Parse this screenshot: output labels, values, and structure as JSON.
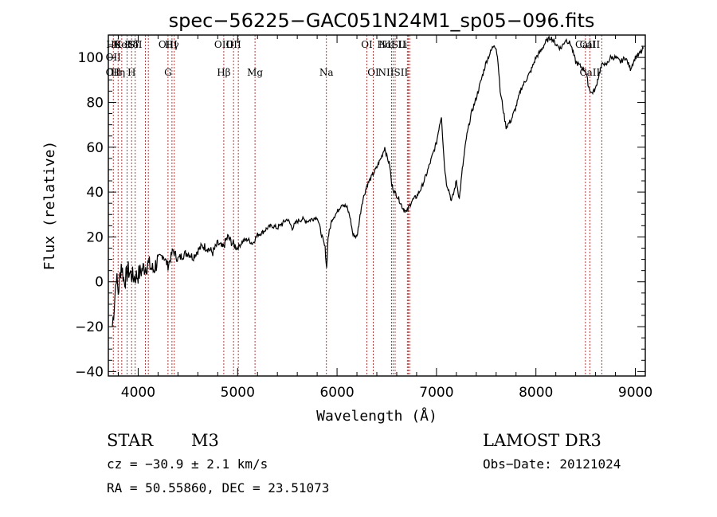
{
  "chart_data": {
    "type": "line",
    "title": "spec−56225−GAC051N24M1_sp05−096.fits",
    "xlabel": "Wavelength (Å)",
    "ylabel": "Flux (relative)",
    "xlim": [
      3700,
      9100
    ],
    "ylim": [
      -42,
      110
    ],
    "x_ticks": [
      4000,
      5000,
      6000,
      7000,
      8000,
      9000
    ],
    "y_ticks": [
      -40,
      -20,
      0,
      20,
      40,
      60,
      80,
      100
    ],
    "y_tick_labels": [
      "−40",
      "−20",
      "0",
      "20",
      "40",
      "60",
      "80",
      "100"
    ],
    "line_color": "#000000",
    "marker_color": "#b22222",
    "series": [
      {
        "name": "flux",
        "x": [
          3740,
          3760,
          3780,
          3800,
          3830,
          3860,
          3900,
          3950,
          4000,
          4050,
          4100,
          4150,
          4200,
          4250,
          4300,
          4350,
          4400,
          4450,
          4500,
          4550,
          4600,
          4650,
          4700,
          4750,
          4800,
          4850,
          4900,
          4950,
          5000,
          5050,
          5100,
          5150,
          5200,
          5250,
          5300,
          5350,
          5400,
          5450,
          5500,
          5550,
          5600,
          5650,
          5700,
          5750,
          5800,
          5850,
          5880,
          5895,
          5910,
          5950,
          6000,
          6050,
          6100,
          6130,
          6160,
          6200,
          6250,
          6300,
          6350,
          6400,
          6450,
          6480,
          6500,
          6530,
          6550,
          6580,
          6620,
          6660,
          6700,
          6720,
          6750,
          6800,
          6850,
          6900,
          6950,
          7000,
          7030,
          7050,
          7060,
          7080,
          7100,
          7130,
          7150,
          7170,
          7200,
          7230,
          7260,
          7300,
          7350,
          7400,
          7450,
          7500,
          7550,
          7580,
          7600,
          7620,
          7640,
          7660,
          7680,
          7700,
          7750,
          7800,
          7850,
          7900,
          7950,
          8000,
          8050,
          8100,
          8150,
          8200,
          8250,
          8300,
          8350,
          8400,
          8450,
          8500,
          8530,
          8560,
          8600,
          8620,
          8650,
          8680,
          8700,
          8750,
          8800,
          8850,
          8900,
          8950,
          9000,
          9050,
          9080
        ],
        "y": [
          -20,
          -10,
          3,
          -5,
          8,
          0,
          5,
          2,
          3,
          6,
          8,
          5,
          10,
          12,
          7,
          14,
          10,
          12,
          13,
          11,
          14,
          16,
          15,
          13,
          17,
          15,
          20,
          17,
          15,
          18,
          19,
          17,
          21,
          22,
          24,
          25,
          24,
          26,
          28,
          24,
          27,
          28,
          27,
          28,
          29,
          20,
          15,
          6,
          20,
          28,
          31,
          35,
          33,
          29,
          21,
          20,
          35,
          43,
          47,
          51,
          56,
          60,
          56,
          52,
          43,
          40,
          37,
          33,
          31,
          33,
          36,
          38,
          42,
          48,
          55,
          62,
          70,
          74,
          66,
          52,
          44,
          40,
          36,
          39,
          45,
          37,
          50,
          64,
          75,
          82,
          90,
          98,
          103,
          106,
          104,
          98,
          85,
          80,
          74,
          69,
          72,
          78,
          86,
          90,
          94,
          100,
          103,
          107,
          109,
          106,
          104,
          108,
          106,
          98,
          96,
          94,
          87,
          84,
          86,
          90,
          95,
          98,
          96,
          100,
          100,
          98,
          100,
          95,
          100,
          102,
          104
        ]
      }
    ],
    "line_markers": [
      {
        "x": 3750,
        "top": [
          "Hθ",
          "OII"
        ],
        "bottom": [
          "OII"
        ]
      },
      {
        "x": 3798,
        "top": [
          "K"
        ],
        "bottom": [
          "Hη"
        ]
      },
      {
        "x": 3835,
        "top": [
          "HeI"
        ],
        "bottom": []
      },
      {
        "x": 3889,
        "top": [],
        "bottom": []
      },
      {
        "x": 3934,
        "top": [
          "Hδ"
        ],
        "bottom": [
          "H"
        ]
      },
      {
        "x": 3970,
        "top": [
          "SII"
        ],
        "bottom": []
      },
      {
        "x": 4072,
        "top": [],
        "bottom": []
      },
      {
        "x": 4102,
        "top": [],
        "bottom": []
      },
      {
        "x": 4300,
        "top": [
          "OIII"
        ],
        "bottom": [
          "G"
        ]
      },
      {
        "x": 4340,
        "top": [
          "Hγ"
        ],
        "bottom": []
      },
      {
        "x": 4363,
        "top": [],
        "bottom": []
      },
      {
        "x": 4861,
        "top": [
          "OIII"
        ],
        "bottom": [
          "Hβ"
        ]
      },
      {
        "x": 4959,
        "top": [
          "OII"
        ],
        "bottom": []
      },
      {
        "x": 5007,
        "top": [],
        "bottom": []
      },
      {
        "x": 5175,
        "top": [],
        "bottom": [
          "Mg"
        ]
      },
      {
        "x": 5893,
        "top": [],
        "bottom": [
          "Na"
        ]
      },
      {
        "x": 6300,
        "top": [
          "OI"
        ],
        "bottom": []
      },
      {
        "x": 6364,
        "top": [],
        "bottom": [
          "OI"
        ]
      },
      {
        "x": 6548,
        "top": [
          "HαSII"
        ],
        "bottom": []
      },
      {
        "x": 6563,
        "top": [
          "NII Li"
        ],
        "bottom": [
          "NIISII"
        ]
      },
      {
        "x": 6584,
        "top": [],
        "bottom": []
      },
      {
        "x": 6707,
        "top": [],
        "bottom": []
      },
      {
        "x": 6717,
        "top": [],
        "bottom": []
      },
      {
        "x": 6731,
        "top": [],
        "bottom": []
      },
      {
        "x": 8498,
        "top": [
          "CaII"
        ],
        "bottom": []
      },
      {
        "x": 8542,
        "top": [
          "CaII"
        ],
        "bottom": [
          "CaII"
        ]
      },
      {
        "x": 8662,
        "top": [],
        "bottom": []
      }
    ]
  },
  "info": {
    "object_class": "STAR",
    "subclass": "M3",
    "survey": "LAMOST DR3",
    "redshift": "cz = −30.9 ± 2.1 km/s",
    "obs_date": "Obs−Date: 20121024",
    "coords": "RA =  50.55860, DEC =  23.51073"
  }
}
